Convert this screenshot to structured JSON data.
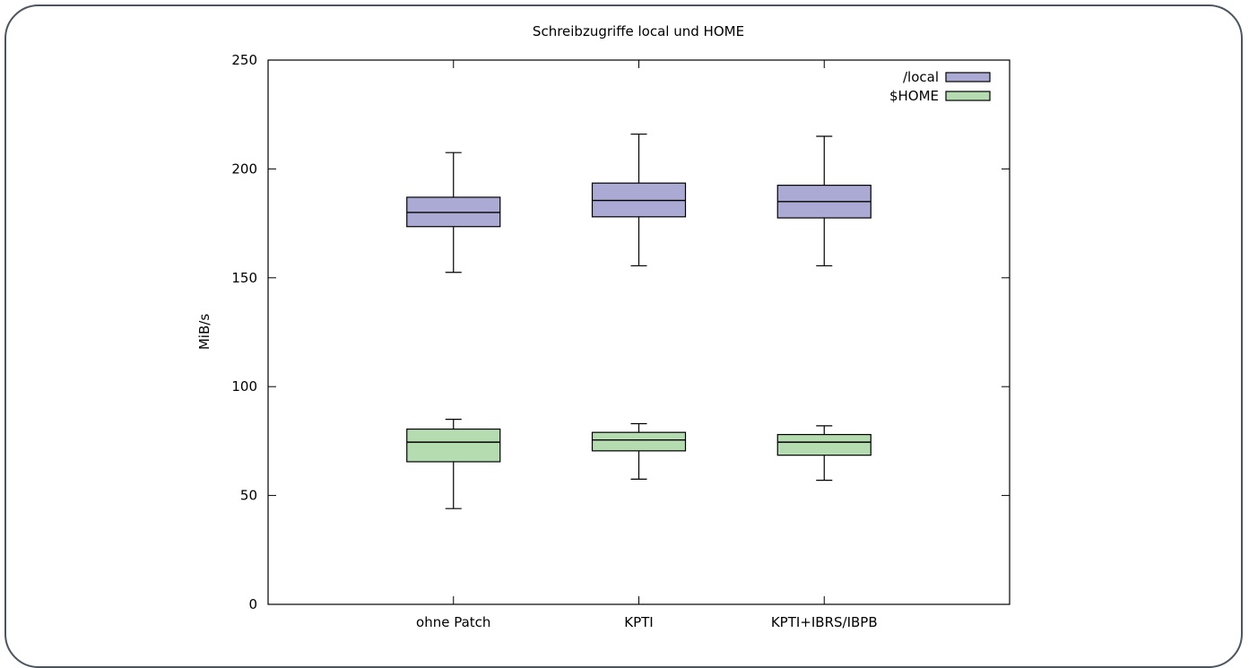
{
  "chart_data": {
    "type": "boxplot",
    "title": "Schreibzugriffe local und HOME",
    "xlabel": "",
    "ylabel": "MiB/s",
    "ylim": [
      0,
      250
    ],
    "yticks": [
      0,
      50,
      100,
      150,
      200,
      250
    ],
    "categories": [
      "ohne Patch",
      "KPTI",
      "KPTI+IBRS/IBPB"
    ],
    "legend_position": "top-right",
    "grid": false,
    "series": [
      {
        "name": "/local",
        "color": "#aaaad5",
        "boxes": [
          {
            "min": 152.5,
            "q1": 173.5,
            "median": 180,
            "q3": 187,
            "max": 207.5
          },
          {
            "min": 155.5,
            "q1": 178,
            "median": 185.5,
            "q3": 193.5,
            "max": 216
          },
          {
            "min": 155.5,
            "q1": 177.5,
            "median": 185,
            "q3": 192.5,
            "max": 215
          }
        ]
      },
      {
        "name": "$HOME",
        "color": "#b5dcb0",
        "boxes": [
          {
            "min": 44,
            "q1": 65.5,
            "median": 74.5,
            "q3": 80.5,
            "max": 85
          },
          {
            "min": 57.5,
            "q1": 70.5,
            "median": 75.5,
            "q3": 79,
            "max": 83
          },
          {
            "min": 57,
            "q1": 68.5,
            "median": 74.5,
            "q3": 78,
            "max": 82
          }
        ]
      }
    ]
  }
}
